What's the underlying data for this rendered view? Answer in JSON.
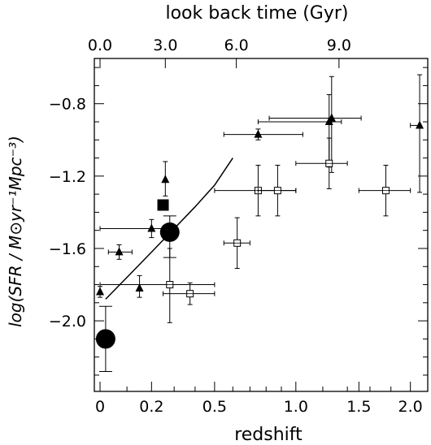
{
  "chart_data": {
    "type": "scatter",
    "title": "",
    "top_axis": {
      "label": "look back time (Gyr)",
      "ticks": [
        {
          "z": 0.0,
          "label": "0.0"
        },
        {
          "z": 0.26,
          "label": "3.0"
        },
        {
          "z": 0.62,
          "label": "6.0"
        },
        {
          "z": 1.33,
          "label": "9.0"
        }
      ]
    },
    "xlabel": "redshift",
    "ylabel": "log(SFR / M⊙yr⁻¹Mpc⁻³)",
    "xlim": [
      -0.02,
      2.19
    ],
    "x_scale": "log(1+z)",
    "ylim": [
      -2.39,
      -0.55
    ],
    "grid": false,
    "legend": "none",
    "x_ticks": [
      {
        "value": 0.0,
        "label": "0"
      },
      {
        "value": 0.2,
        "label": "0.2"
      },
      {
        "value": 0.5,
        "label": "0.5"
      },
      {
        "value": 1.0,
        "label": "1.0"
      },
      {
        "value": 1.5,
        "label": "1.5"
      },
      {
        "value": 2.0,
        "label": "2.0"
      }
    ],
    "y_ticks": [
      {
        "value": -0.8,
        "label": "−0.8"
      },
      {
        "value": -1.2,
        "label": "−1.2"
      },
      {
        "value": -1.6,
        "label": "−1.6"
      },
      {
        "value": -2.0,
        "label": "−2.0"
      }
    ],
    "series": [
      {
        "marker": "filled-triangle",
        "points": [
          {
            "x": 0.0,
            "y": -1.84,
            "xerr": [
              0.0,
              0.0
            ],
            "yerr": [
              0.03,
              0.03
            ]
          },
          {
            "x": 0.07,
            "y": -1.62,
            "xerr": [
              0.04,
              0.05
            ],
            "yerr": [
              0.04,
              0.04
            ]
          },
          {
            "x": 0.15,
            "y": -1.82,
            "xerr": [
              0.0,
              0.0
            ],
            "yerr": [
              0.05,
              0.07
            ]
          },
          {
            "x": 0.2,
            "y": -1.49,
            "xerr": [
              0.2,
              0.08
            ],
            "yerr": [
              0.05,
              0.05
            ]
          },
          {
            "x": 0.26,
            "y": -1.22,
            "xerr": [
              0.0,
              0.0
            ],
            "yerr": [
              0.09,
              0.1
            ]
          },
          {
            "x": 0.75,
            "y": -0.97,
            "xerr": [
              0.2,
              0.3
            ],
            "yerr": [
              0.03,
              0.03
            ]
          },
          {
            "x": 1.25,
            "y": -0.9,
            "xerr": [
              0.5,
              0.1
            ],
            "yerr": [
              0.25,
              0.15
            ]
          },
          {
            "x": 1.27,
            "y": -0.88,
            "xerr": [
              0.45,
              0.25
            ],
            "yerr": [
              0.3,
              0.23
            ]
          },
          {
            "x": 2.1,
            "y": -0.92,
            "xerr": [
              0.1,
              0.0
            ],
            "yerr": [
              0.37,
              0.28
            ]
          }
        ]
      },
      {
        "marker": "open-square",
        "points": [
          {
            "x": 0.28,
            "y": -1.8,
            "xerr": [
              0.28,
              0.22
            ],
            "yerr": [
              0.21,
              0.2
            ]
          },
          {
            "x": 0.375,
            "y": -1.85,
            "xerr": [
              0.125,
              0.125
            ],
            "yerr": [
              0.06,
              0.06
            ]
          },
          {
            "x": 0.625,
            "y": -1.57,
            "xerr": [
              0.075,
              0.075
            ],
            "yerr": [
              0.14,
              0.14
            ]
          },
          {
            "x": 0.75,
            "y": -1.28,
            "xerr": [
              0.25,
              0.25
            ],
            "yerr": [
              0.14,
              0.14
            ]
          },
          {
            "x": 0.875,
            "y": -1.28,
            "xerr": [
              0.125,
              0.125
            ],
            "yerr": [
              0.14,
              0.14
            ]
          },
          {
            "x": 1.25,
            "y": -1.13,
            "xerr": [
              0.25,
              0.15
            ],
            "yerr": [
              0.14,
              0.14
            ]
          },
          {
            "x": 1.75,
            "y": -1.28,
            "xerr": [
              0.25,
              0.25
            ],
            "yerr": [
              0.14,
              0.14
            ]
          }
        ]
      },
      {
        "marker": "filled-square",
        "points": [
          {
            "x": 0.25,
            "y": -1.36,
            "xerr": [
              0.0,
              0.0
            ],
            "yerr": [
              0.0,
              0.0
            ]
          }
        ]
      },
      {
        "marker": "filled-circle-large",
        "points": [
          {
            "x": 0.02,
            "y": -2.1,
            "xerr": [
              0.0,
              0.0
            ],
            "yerr": [
              0.18,
              0.18
            ]
          },
          {
            "x": 0.28,
            "y": -1.51,
            "xerr": [
              0.0,
              0.0
            ],
            "yerr": [
              0.14,
              0.09
            ]
          }
        ]
      },
      {
        "marker": "line",
        "points": [
          {
            "x": 0.02,
            "y": -1.88
          },
          {
            "x": 0.1,
            "y": -1.76
          },
          {
            "x": 0.2,
            "y": -1.62
          },
          {
            "x": 0.3,
            "y": -1.49
          },
          {
            "x": 0.4,
            "y": -1.37
          },
          {
            "x": 0.5,
            "y": -1.25
          },
          {
            "x": 0.6,
            "y": -1.1
          }
        ]
      }
    ]
  }
}
